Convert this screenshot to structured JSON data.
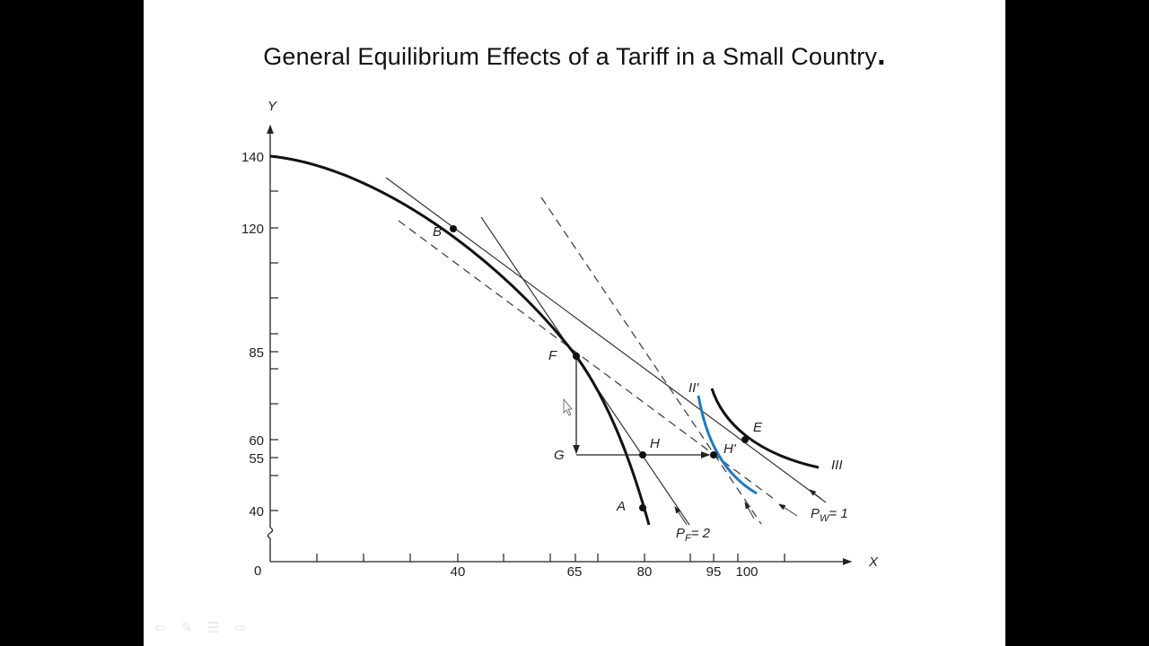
{
  "slide": {
    "title": "General Equilibrium Effects of a Tariff in a Small Country",
    "title_end": "."
  },
  "diagram": {
    "axes": {
      "x_label": "X",
      "y_label": "Y",
      "origin": "0",
      "x_ticks": [
        "40",
        "65",
        "80",
        "95",
        "100"
      ],
      "y_ticks": [
        "140",
        "120",
        "85",
        "60",
        "55",
        "40"
      ]
    },
    "points": {
      "B": "B",
      "F": "F",
      "G": "G",
      "H": "H",
      "H_prime": "H'",
      "E": "E",
      "A": "A"
    },
    "curves": {
      "indiff_II": "II'",
      "indiff_III": "III"
    },
    "price_lines": {
      "world": "P",
      "world_sub": "W",
      "world_val": "= 1",
      "foreign": "P",
      "foreign_sub": "F",
      "foreign_val": "= 2"
    },
    "colors": {
      "ppf": "#111111",
      "indiff_II": "#1f78c8",
      "indiff_III": "#111111"
    }
  },
  "nav": {
    "icons": [
      "previous-icon",
      "pen-icon",
      "menu-icon",
      "next-icon"
    ]
  }
}
